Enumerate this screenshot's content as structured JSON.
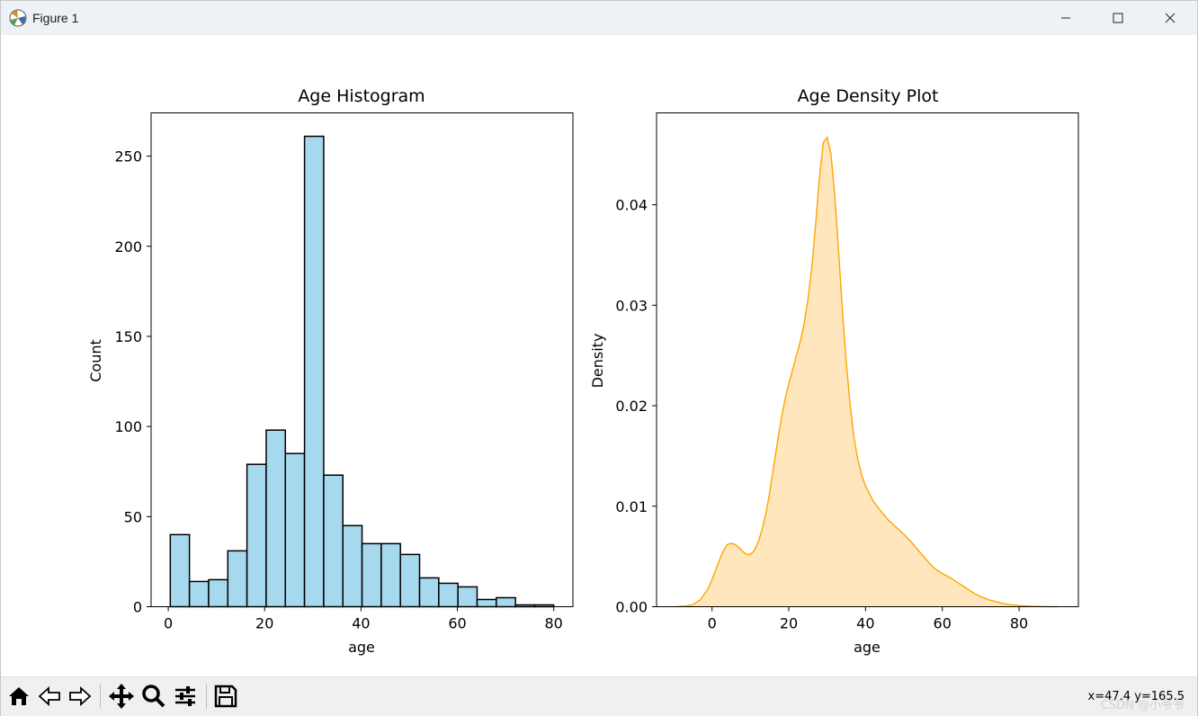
{
  "window": {
    "title": "Figure 1"
  },
  "toolbar": {
    "coords": "x=47.4  y=165.5",
    "watermark": "CSDN @小爷爷"
  },
  "colors": {
    "hist_fill": "#a6d8ee",
    "hist_edge": "#000000",
    "kde_line": "#ffa500",
    "kde_fill": "#ffe6bd"
  },
  "chart_data": [
    {
      "type": "bar",
      "title": "Age Histogram",
      "xlabel": "age",
      "ylabel": "Count",
      "bin_edges": [
        0.42,
        4.4,
        8.38,
        12.36,
        16.34,
        20.32,
        24.3,
        28.28,
        32.26,
        36.24,
        40.22,
        44.2,
        48.18,
        52.16,
        56.14,
        60.12,
        64.1,
        68.08,
        72.06,
        76.04,
        80.0
      ],
      "values": [
        40,
        14,
        15,
        31,
        79,
        98,
        85,
        261,
        73,
        45,
        35,
        35,
        29,
        16,
        13,
        11,
        4,
        5,
        1,
        1
      ],
      "xlim": [
        -3.56,
        83.98
      ],
      "ylim": [
        0,
        274
      ],
      "xticks": [
        "0",
        "20",
        "40",
        "60",
        "80"
      ],
      "xtick_values": [
        0,
        20,
        40,
        60,
        80
      ],
      "yticks": [
        "0",
        "50",
        "100",
        "150",
        "200",
        "250"
      ],
      "ytick_values": [
        0,
        50,
        100,
        150,
        200,
        250
      ]
    },
    {
      "type": "area",
      "title": "Age Density Plot",
      "xlabel": "age",
      "ylabel": "Density",
      "x": [
        -9.5,
        -7,
        -5,
        -3,
        -1,
        0,
        1,
        2,
        3,
        4,
        5,
        6,
        7,
        8,
        9,
        10,
        11,
        12,
        13,
        14,
        15,
        16,
        17,
        18,
        19,
        20,
        21,
        22,
        23,
        24,
        25,
        26,
        27,
        28,
        29,
        30,
        31,
        32,
        33,
        34,
        35,
        36,
        37,
        38,
        39,
        40,
        42,
        44,
        46,
        48,
        50,
        52,
        54,
        56,
        58,
        60,
        62,
        64,
        66,
        68,
        70,
        72,
        74,
        76,
        78,
        80,
        82,
        84,
        86,
        88,
        90
      ],
      "y": [
        0.0,
        5e-05,
        0.0002,
        0.0007,
        0.0018,
        0.0027,
        0.0037,
        0.0047,
        0.0056,
        0.0062,
        0.0063,
        0.0062,
        0.0059,
        0.0055,
        0.0052,
        0.0052,
        0.0056,
        0.0064,
        0.0076,
        0.0092,
        0.0113,
        0.0138,
        0.0163,
        0.0186,
        0.0206,
        0.0222,
        0.0236,
        0.025,
        0.0264,
        0.0282,
        0.0306,
        0.0338,
        0.0381,
        0.0428,
        0.0462,
        0.0467,
        0.045,
        0.0408,
        0.0352,
        0.0293,
        0.0242,
        0.02,
        0.0168,
        0.0146,
        0.0131,
        0.012,
        0.0105,
        0.0095,
        0.0086,
        0.0079,
        0.0072,
        0.0064,
        0.0055,
        0.0046,
        0.0038,
        0.0033,
        0.0029,
        0.0024,
        0.0019,
        0.0014,
        0.001,
        0.0007,
        0.0005,
        0.0003,
        0.0002,
        0.00012,
        7e-05,
        4e-05,
        2e-05,
        1e-05,
        0.0
      ],
      "xlim": [
        -14.45,
        95.45
      ],
      "ylim": [
        0,
        0.04914
      ],
      "xticks": [
        "0",
        "20",
        "40",
        "60",
        "80"
      ],
      "xtick_values": [
        0,
        20,
        40,
        60,
        80
      ],
      "yticks": [
        "0.00",
        "0.01",
        "0.02",
        "0.03",
        "0.04"
      ],
      "ytick_values": [
        0,
        0.01,
        0.02,
        0.03,
        0.04
      ]
    }
  ]
}
